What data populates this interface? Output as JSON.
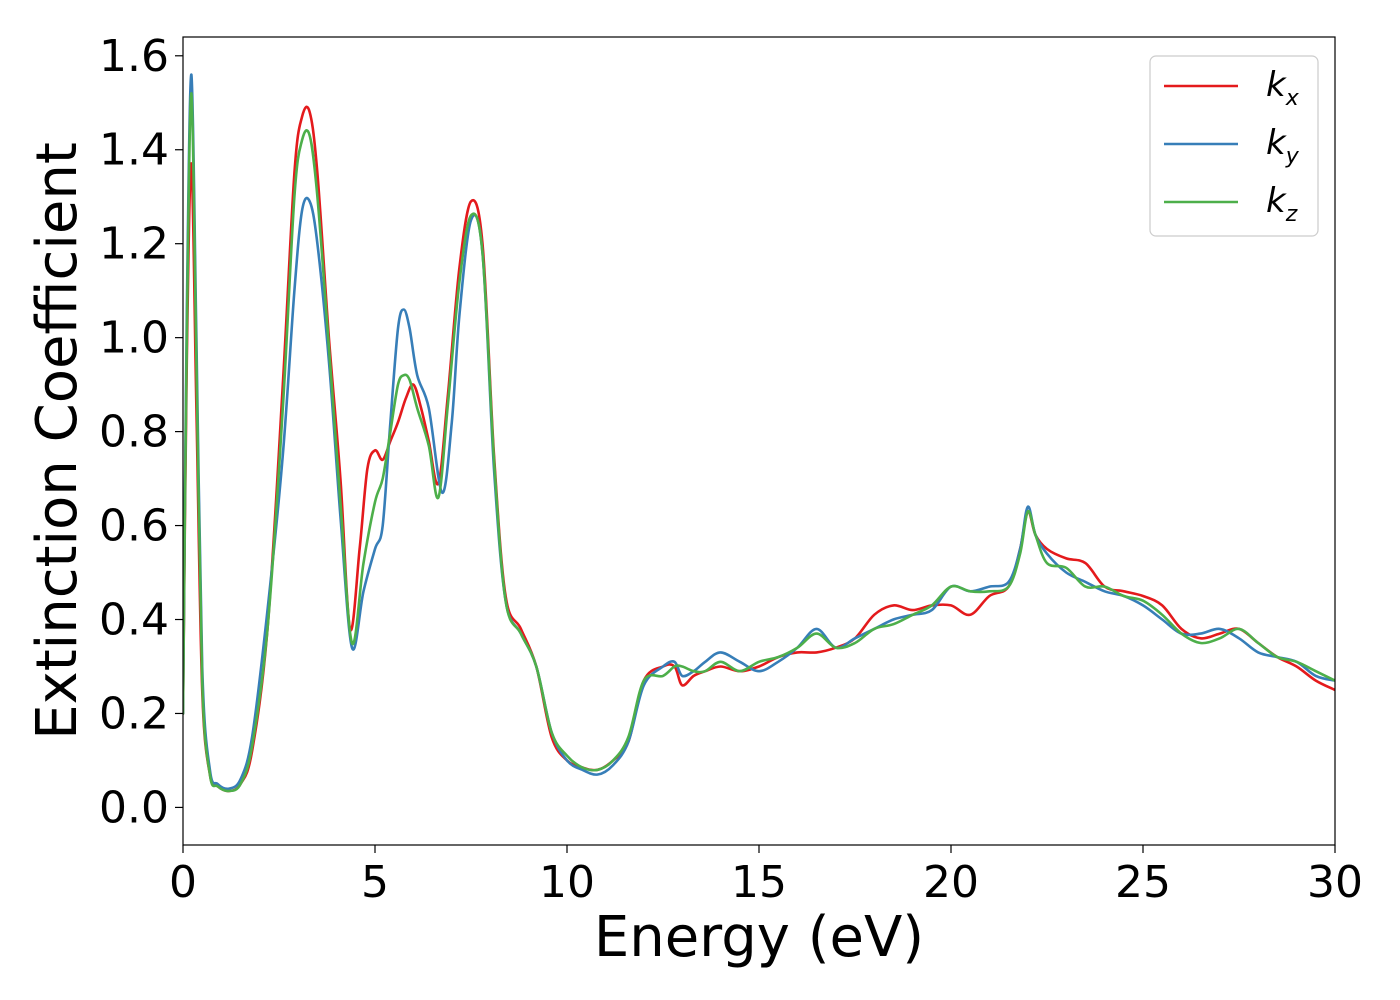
{
  "chart_data": {
    "type": "line",
    "title": "",
    "xlabel": "Energy (eV)",
    "ylabel": "Extinction Coefficient",
    "xlim": [
      0,
      30
    ],
    "ylim": [
      -0.08,
      1.64
    ],
    "xticks": [
      0,
      5,
      10,
      15,
      20,
      25,
      30
    ],
    "xtick_labels": [
      "0",
      "5",
      "10",
      "15",
      "20",
      "25",
      "30"
    ],
    "yticks": [
      0.0,
      0.2,
      0.4,
      0.6,
      0.8,
      1.0,
      1.2,
      1.4,
      1.6
    ],
    "ytick_labels": [
      "0.0",
      "0.2",
      "0.4",
      "0.6",
      "0.8",
      "1.0",
      "1.2",
      "1.4",
      "1.6"
    ],
    "grid": false,
    "legend_position": "top-right",
    "series": [
      {
        "name": "k_x",
        "name_base": "k",
        "name_sub": "x",
        "color": "#e41a1c",
        "x": [
          0,
          0.1,
          0.22,
          0.35,
          0.5,
          0.7,
          0.9,
          1.2,
          1.5,
          1.8,
          2.2,
          2.6,
          2.9,
          3.1,
          3.3,
          3.5,
          3.8,
          4.1,
          4.35,
          4.6,
          4.8,
          5.0,
          5.2,
          5.4,
          5.6,
          5.8,
          6.0,
          6.2,
          6.4,
          6.65,
          6.9,
          7.2,
          7.5,
          7.8,
          8.1,
          8.4,
          8.8,
          9.2,
          9.6,
          10.0,
          10.4,
          10.8,
          11.2,
          11.6,
          12.0,
          12.5,
          12.8,
          13.0,
          13.3,
          13.6,
          14.0,
          14.5,
          15.0,
          15.5,
          16.0,
          16.5,
          17.0,
          17.5,
          18.0,
          18.5,
          19.0,
          19.5,
          20.0,
          20.5,
          21.0,
          21.5,
          21.8,
          22.0,
          22.2,
          22.5,
          23.0,
          23.5,
          24.0,
          24.5,
          25.0,
          25.5,
          26.0,
          26.5,
          27.0,
          27.5,
          28.0,
          28.5,
          29.0,
          29.5,
          30.0
        ],
        "y": [
          0.2,
          0.95,
          1.37,
          0.85,
          0.25,
          0.07,
          0.045,
          0.035,
          0.05,
          0.12,
          0.38,
          0.9,
          1.35,
          1.47,
          1.48,
          1.35,
          1.0,
          0.7,
          0.38,
          0.55,
          0.72,
          0.76,
          0.74,
          0.78,
          0.82,
          0.87,
          0.9,
          0.85,
          0.78,
          0.69,
          0.88,
          1.15,
          1.29,
          1.2,
          0.75,
          0.45,
          0.38,
          0.3,
          0.15,
          0.1,
          0.085,
          0.08,
          0.1,
          0.14,
          0.27,
          0.3,
          0.3,
          0.26,
          0.28,
          0.29,
          0.3,
          0.29,
          0.3,
          0.32,
          0.33,
          0.33,
          0.34,
          0.36,
          0.41,
          0.43,
          0.42,
          0.43,
          0.43,
          0.41,
          0.45,
          0.47,
          0.55,
          0.63,
          0.58,
          0.55,
          0.53,
          0.52,
          0.47,
          0.46,
          0.45,
          0.43,
          0.38,
          0.36,
          0.37,
          0.38,
          0.35,
          0.32,
          0.3,
          0.27,
          0.25
        ]
      },
      {
        "name": "k_y",
        "name_base": "k",
        "name_sub": "y",
        "color": "#377eb8",
        "x": [
          0,
          0.1,
          0.22,
          0.35,
          0.5,
          0.7,
          0.9,
          1.2,
          1.5,
          1.8,
          2.2,
          2.6,
          2.9,
          3.1,
          3.3,
          3.5,
          3.8,
          4.1,
          4.4,
          4.7,
          5.0,
          5.2,
          5.4,
          5.6,
          5.75,
          5.9,
          6.1,
          6.4,
          6.75,
          7.0,
          7.2,
          7.5,
          7.8,
          8.1,
          8.4,
          8.8,
          9.2,
          9.6,
          10.0,
          10.4,
          10.8,
          11.2,
          11.6,
          12.0,
          12.5,
          12.8,
          13.0,
          13.3,
          13.6,
          14.0,
          14.5,
          15.0,
          15.5,
          16.0,
          16.5,
          17.0,
          17.5,
          18.0,
          18.5,
          19.0,
          19.5,
          20.0,
          20.5,
          21.0,
          21.5,
          21.8,
          22.0,
          22.2,
          22.5,
          23.0,
          23.5,
          24.0,
          24.5,
          25.0,
          25.5,
          26.0,
          26.5,
          27.0,
          27.5,
          28.0,
          28.5,
          29.0,
          29.5,
          30.0
        ],
        "y": [
          0.2,
          1.05,
          1.56,
          1.0,
          0.3,
          0.08,
          0.05,
          0.04,
          0.06,
          0.15,
          0.42,
          0.75,
          1.1,
          1.27,
          1.29,
          1.2,
          0.95,
          0.62,
          0.34,
          0.46,
          0.55,
          0.6,
          0.82,
          1.02,
          1.06,
          1.02,
          0.92,
          0.85,
          0.67,
          0.82,
          1.05,
          1.25,
          1.18,
          0.72,
          0.44,
          0.37,
          0.3,
          0.16,
          0.1,
          0.08,
          0.07,
          0.09,
          0.14,
          0.26,
          0.3,
          0.31,
          0.28,
          0.29,
          0.31,
          0.33,
          0.31,
          0.29,
          0.31,
          0.34,
          0.38,
          0.34,
          0.36,
          0.38,
          0.4,
          0.41,
          0.42,
          0.47,
          0.46,
          0.47,
          0.48,
          0.55,
          0.64,
          0.58,
          0.54,
          0.5,
          0.48,
          0.46,
          0.45,
          0.43,
          0.4,
          0.37,
          0.37,
          0.38,
          0.36,
          0.33,
          0.32,
          0.31,
          0.28,
          0.27
        ]
      },
      {
        "name": "k_z",
        "name_base": "k",
        "name_sub": "z",
        "color": "#4daf4a",
        "x": [
          0,
          0.1,
          0.22,
          0.35,
          0.5,
          0.7,
          0.9,
          1.2,
          1.5,
          1.8,
          2.2,
          2.6,
          2.9,
          3.1,
          3.3,
          3.5,
          3.8,
          4.1,
          4.4,
          4.7,
          5.0,
          5.2,
          5.4,
          5.6,
          5.75,
          5.9,
          6.1,
          6.4,
          6.65,
          6.9,
          7.2,
          7.5,
          7.8,
          8.1,
          8.4,
          8.8,
          9.2,
          9.6,
          10.0,
          10.4,
          10.8,
          11.2,
          11.6,
          12.0,
          12.5,
          12.8,
          13.0,
          13.3,
          13.6,
          14.0,
          14.5,
          15.0,
          15.5,
          16.0,
          16.5,
          17.0,
          17.5,
          18.0,
          18.5,
          19.0,
          19.5,
          20.0,
          20.5,
          21.0,
          21.5,
          21.8,
          22.0,
          22.2,
          22.5,
          23.0,
          23.5,
          24.0,
          24.5,
          25.0,
          25.5,
          26.0,
          26.5,
          27.0,
          27.5,
          28.0,
          28.5,
          29.0,
          29.5,
          30.0
        ],
        "y": [
          0.2,
          1.0,
          1.52,
          0.95,
          0.27,
          0.07,
          0.045,
          0.035,
          0.05,
          0.13,
          0.38,
          0.85,
          1.3,
          1.42,
          1.43,
          1.3,
          0.98,
          0.65,
          0.35,
          0.52,
          0.65,
          0.7,
          0.8,
          0.9,
          0.92,
          0.91,
          0.85,
          0.77,
          0.66,
          0.86,
          1.12,
          1.26,
          1.18,
          0.74,
          0.44,
          0.37,
          0.3,
          0.16,
          0.11,
          0.085,
          0.08,
          0.1,
          0.15,
          0.27,
          0.28,
          0.3,
          0.3,
          0.29,
          0.29,
          0.31,
          0.29,
          0.31,
          0.32,
          0.34,
          0.37,
          0.34,
          0.35,
          0.38,
          0.39,
          0.41,
          0.43,
          0.47,
          0.46,
          0.46,
          0.47,
          0.54,
          0.63,
          0.58,
          0.52,
          0.51,
          0.47,
          0.47,
          0.45,
          0.44,
          0.41,
          0.37,
          0.35,
          0.36,
          0.38,
          0.35,
          0.32,
          0.31,
          0.29,
          0.27
        ]
      }
    ]
  }
}
